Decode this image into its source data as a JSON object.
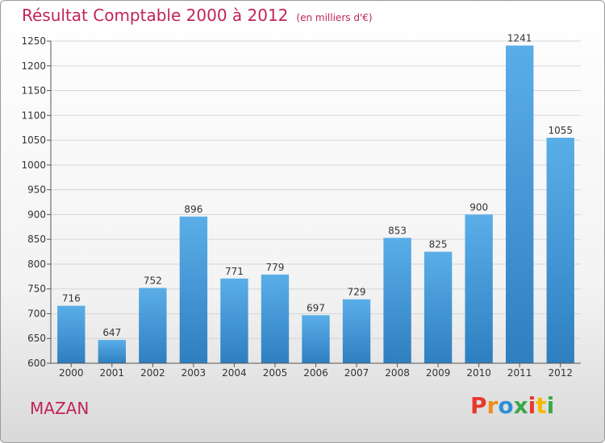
{
  "title": "Résultat Comptable 2000 à 2012",
  "unit": "(en milliers d'€)",
  "commune": "MAZAN",
  "logo": {
    "text": "Proxiti",
    "colors": [
      "#e8382d",
      "#f08c1c",
      "#2f8fd6",
      "#3aa84a",
      "#e8382d",
      "#f5b800",
      "#3aa84a"
    ]
  },
  "colors": {
    "title": "#c0245c",
    "bar_top": "#5aaee8",
    "bar_bottom": "#2e7fc0",
    "grid": "#d6d6d6"
  },
  "chart_data": {
    "type": "bar",
    "title": "Résultat Comptable 2000 à 2012",
    "xlabel": "",
    "ylabel": "",
    "categories": [
      "2000",
      "2001",
      "2002",
      "2003",
      "2004",
      "2005",
      "2006",
      "2007",
      "2008",
      "2009",
      "2010",
      "2011",
      "2012"
    ],
    "values": [
      716,
      647,
      752,
      896,
      771,
      779,
      697,
      729,
      853,
      825,
      900,
      1241,
      1055
    ],
    "ylim": [
      600,
      1250
    ],
    "yticks": [
      600,
      650,
      700,
      750,
      800,
      850,
      900,
      950,
      1000,
      1050,
      1100,
      1150,
      1200,
      1250
    ],
    "grid": true
  }
}
